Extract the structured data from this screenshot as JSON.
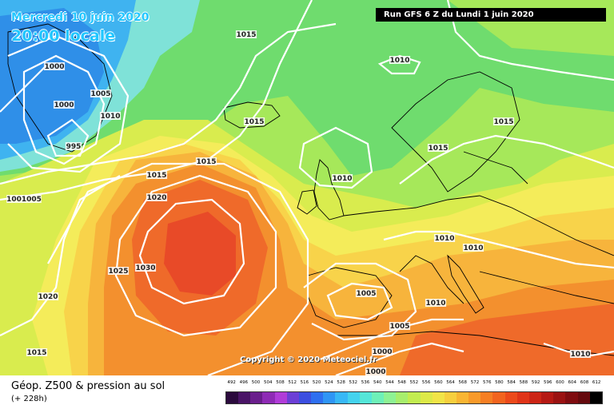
{
  "header": {
    "date_line": "Mercredi 10 juin 2020",
    "time_line": "20:00 locale",
    "run_info": "Run GFS 6 Z du Lundi 1 juin 2020"
  },
  "footer": {
    "parameter_title": "Géop. Z500 & pression au sol",
    "forecast_offset": "(+ 228h)",
    "copyright": "Copyright © 2020 Meteociel.fr"
  },
  "legend": {
    "values": [
      "492",
      "496",
      "500",
      "504",
      "508",
      "512",
      "516",
      "520",
      "524",
      "528",
      "532",
      "536",
      "540",
      "544",
      "548",
      "552",
      "556",
      "560",
      "564",
      "568",
      "572",
      "576",
      "580",
      "584",
      "588",
      "592",
      "596",
      "600",
      "604",
      "608",
      "612"
    ],
    "colors": [
      "#2b0a3d",
      "#4a1466",
      "#6a1e8c",
      "#8e2bb5",
      "#b03cd8",
      "#6c3fd6",
      "#3c4fe0",
      "#2e6ff0",
      "#2f95f5",
      "#38b8f6",
      "#44d3ee",
      "#55e6d8",
      "#6ef0b8",
      "#8ef294",
      "#a7ee6d",
      "#c2ec50",
      "#dde948",
      "#f1e447",
      "#f7cf3e",
      "#f9b533",
      "#f89a2a",
      "#f67f24",
      "#f2641f",
      "#ec4a1b",
      "#e03418",
      "#cc2516",
      "#b51914",
      "#9a1212",
      "#7f0c10",
      "#650a0e",
      "#000000"
    ]
  },
  "map": {
    "colors": {
      "level_540": "#2f8fe8",
      "level_548": "#3fb3f0",
      "level_552": "#7fe2d8",
      "level_556": "#6fdc6e",
      "level_560": "#a6e85a",
      "level_564": "#d9ec4e",
      "level_568": "#f4ec5a",
      "level_572": "#f8d34a",
      "level_576": "#f7b43c",
      "level_580": "#f3902e",
      "level_584": "#ef6a2a",
      "level_588": "#e84a28",
      "isobar": "#ffffff",
      "coastline": "#000000"
    },
    "isobar_labels": [
      "1015",
      "1000",
      "1005",
      "1000",
      "1010",
      "995",
      "1010",
      "1015",
      "1015",
      "1015",
      "1015",
      "1010",
      "1015",
      "1020",
      "1001005",
      "1025",
      "1030",
      "1010",
      "1010",
      "1020",
      "1005",
      "1010",
      "1005",
      "1015",
      "1000",
      "1000",
      "1010"
    ]
  }
}
